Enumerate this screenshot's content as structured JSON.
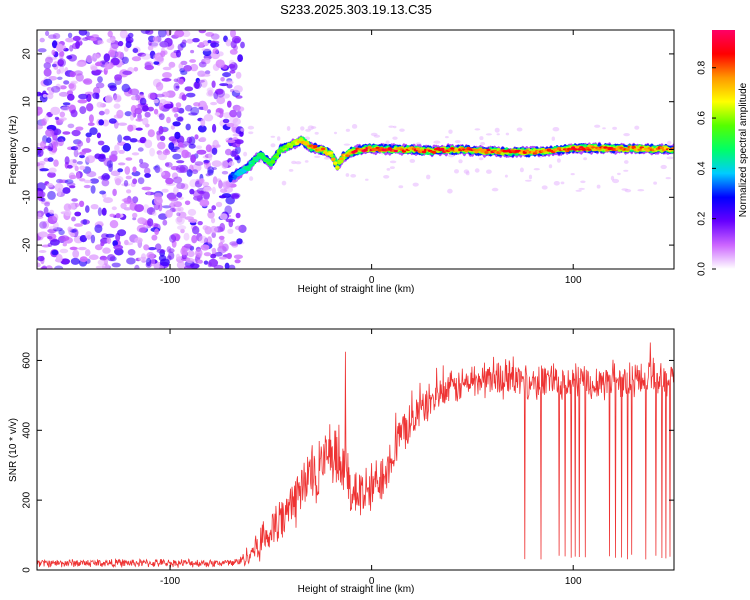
{
  "title": "S233.2025.303.19.13.C35",
  "chart_data": [
    {
      "type": "heatmap",
      "xlabel": "Height of straight line (km)",
      "ylabel": "Frequency (Hz)",
      "xlim": [
        -166,
        150
      ],
      "ylim": [
        -25,
        25
      ],
      "xticks": [
        -100,
        0,
        100
      ],
      "yticks": [
        -20,
        -10,
        0,
        10,
        20
      ],
      "colorbar": {
        "label": "Normalized spectral amplitude",
        "range": [
          0,
          0.95
        ],
        "ticks": [
          0.0,
          0.2,
          0.4,
          0.6,
          0.8
        ],
        "tick_labels": [
          "0.0",
          "0.2",
          "0.4",
          "0.6",
          "0.8"
        ],
        "colormap": [
          "#ffffff",
          "#cc66ff",
          "#6600ff",
          "#0000ff",
          "#00ccff",
          "#00ff66",
          "#55ff00",
          "#ffff00",
          "#ff9900",
          "#ff0000",
          "#ff0066"
        ]
      },
      "noise_region_x": [
        -166,
        -66
      ],
      "ridge": {
        "description": "frequency of peak spectral amplitude vs height",
        "x": [
          -70,
          -62,
          -55,
          -50,
          -45,
          -40,
          -35,
          -30,
          -25,
          -20,
          -17,
          -14,
          -10,
          -5,
          0,
          10,
          20,
          30,
          40,
          50,
          60,
          70,
          80,
          90,
          100,
          110,
          120,
          130,
          140,
          150
        ],
        "y": [
          -6,
          -4,
          -1,
          -3,
          0,
          1,
          2,
          0.5,
          0,
          -1,
          -3.5,
          -1.5,
          -0.5,
          0,
          0.2,
          0,
          0,
          -0.3,
          0,
          -0.2,
          -0.4,
          -0.5,
          -0.5,
          -0.2,
          0.2,
          0.3,
          0.2,
          0.2,
          0.1,
          0
        ],
        "amplitude": [
          0.3,
          0.45,
          0.5,
          0.55,
          0.6,
          0.65,
          0.7,
          0.8,
          0.85,
          0.75,
          0.7,
          0.75,
          0.85,
          0.9,
          0.9,
          0.9,
          0.85,
          0.9,
          0.85,
          0.85,
          0.85,
          0.85,
          0.85,
          0.8,
          0.85,
          0.85,
          0.85,
          0.8,
          0.8,
          0.8
        ]
      }
    },
    {
      "type": "line",
      "xlabel": "Height of straight line (km)",
      "ylabel": "SNR (10 * v/v)",
      "xlim": [
        -166,
        150
      ],
      "ylim": [
        0,
        690
      ],
      "xticks": [
        -100,
        0,
        100
      ],
      "yticks": [
        0,
        200,
        400,
        600
      ],
      "color": "#ee3333",
      "series": [
        {
          "name": "SNR",
          "x": [
            -166,
            -150,
            -120,
            -90,
            -70,
            -65,
            -60,
            -55,
            -50,
            -45,
            -40,
            -35,
            -30,
            -25,
            -20,
            -15,
            -10,
            -5,
            0,
            5,
            10,
            15,
            20,
            25,
            30,
            40,
            50,
            60,
            70,
            80,
            90,
            100,
            110,
            120,
            130,
            140,
            150
          ],
          "mean": [
            20,
            20,
            20,
            20,
            20,
            25,
            50,
            80,
            110,
            140,
            180,
            230,
            270,
            300,
            310,
            300,
            240,
            210,
            230,
            270,
            330,
            390,
            430,
            460,
            490,
            520,
            540,
            550,
            545,
            540,
            545,
            540,
            540,
            545,
            545,
            545,
            545
          ],
          "noise": [
            12,
            12,
            12,
            12,
            12,
            15,
            35,
            55,
            70,
            80,
            90,
            95,
            100,
            100,
            100,
            95,
            90,
            85,
            80,
            75,
            70,
            65,
            60,
            55,
            50,
            50,
            55,
            55,
            55,
            55,
            55,
            55,
            55,
            55,
            55,
            55,
            55
          ]
        }
      ],
      "spikes": [
        {
          "x": -13,
          "y": 625
        }
      ],
      "dropouts": [
        76,
        84,
        93,
        96,
        99,
        101,
        103,
        106,
        118,
        121,
        124,
        127,
        129,
        136,
        141,
        144,
        146,
        148
      ],
      "dropout_level": 30
    }
  ]
}
